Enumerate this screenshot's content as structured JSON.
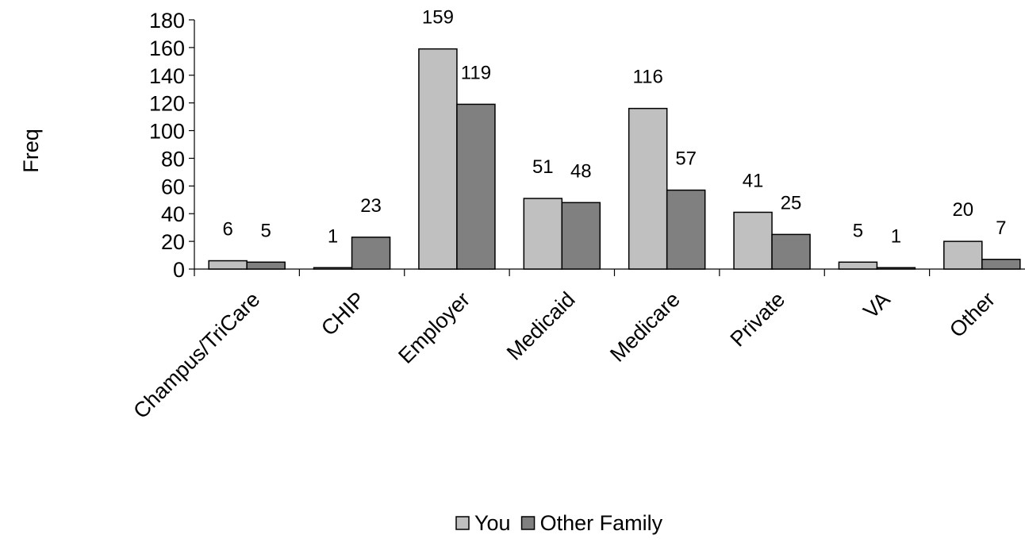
{
  "chart_data": {
    "type": "bar",
    "title": "",
    "xlabel": "",
    "ylabel": "Freq",
    "ylim": [
      0,
      180
    ],
    "yticks": [
      0,
      20,
      40,
      60,
      80,
      100,
      120,
      140,
      160,
      180
    ],
    "grid": false,
    "legend_position": "bottom",
    "categories": [
      "Champus/TriCare",
      "CHIP",
      "Employer",
      "Medicaid",
      "Medicare",
      "Private",
      "VA",
      "Other"
    ],
    "series": [
      {
        "name": "You",
        "color": "#c0c0c0",
        "values": [
          6,
          1,
          159,
          51,
          116,
          41,
          5,
          20
        ]
      },
      {
        "name": "Other Family",
        "color": "#808080",
        "values": [
          5,
          23,
          119,
          48,
          57,
          25,
          1,
          7
        ]
      }
    ]
  }
}
